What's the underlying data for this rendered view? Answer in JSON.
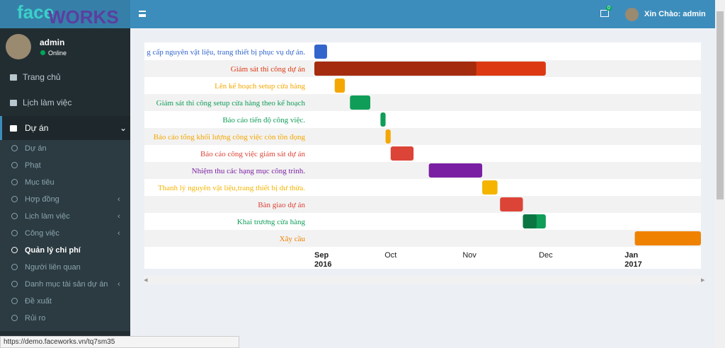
{
  "logo": {
    "part1": "face",
    "part2": "WORKS"
  },
  "user": {
    "name": "admin",
    "status": "Online"
  },
  "header": {
    "greeting": "Xin Chào: admin",
    "mail_count": "0"
  },
  "menu": [
    {
      "label": "Trang chủ",
      "icon": "home"
    },
    {
      "label": "Lịch làm việc",
      "icon": "calendar"
    },
    {
      "label": "Dự án",
      "icon": "briefcase",
      "active": true
    }
  ],
  "submenu": [
    {
      "label": "Dự án",
      "expandable": false
    },
    {
      "label": "Phạt",
      "expandable": false
    },
    {
      "label": "Mục tiêu",
      "expandable": false
    },
    {
      "label": "Hợp đồng",
      "expandable": true
    },
    {
      "label": "Lịch làm việc",
      "expandable": true
    },
    {
      "label": "Công việc",
      "expandable": true
    },
    {
      "label": "Quản lý chi phí",
      "expandable": false,
      "current": true
    },
    {
      "label": "Người liên quan",
      "expandable": false
    },
    {
      "label": "Danh mục tài sản dự án",
      "expandable": true
    },
    {
      "label": "Đề xuất",
      "expandable": false
    },
    {
      "label": "Rủi ro",
      "expandable": false
    }
  ],
  "status_url": "https://demo.faceworks.vn/tq7sm35",
  "chart_data": {
    "type": "gantt",
    "xlim": [
      "2016-09-01",
      "2017-01-31"
    ],
    "xticks": [
      {
        "value": "2016-09-01",
        "label": "Sep",
        "year": "2016"
      },
      {
        "value": "2016-10-01",
        "label": "Oct"
      },
      {
        "value": "2016-11-01",
        "label": "Nov"
      },
      {
        "value": "2016-12-01",
        "label": "Dec"
      },
      {
        "value": "2017-01-01",
        "label": "Jan",
        "year": "2017"
      }
    ],
    "series": [
      {
        "name": "g cấp nguyên vật liệu, trang thiết bị phục vụ dự án.",
        "start": "2016-09-01",
        "end": "2016-09-06",
        "color": "#3366cc"
      },
      {
        "name": "Giám sát thi công dự án",
        "start": "2016-09-01",
        "end": "2016-12-01",
        "color": "#dc3912",
        "progress": 70
      },
      {
        "name": "Lên kế hoạch setup cửa hàng",
        "start": "2016-09-09",
        "end": "2016-09-13",
        "color": "#f4a700"
      },
      {
        "name": "Giám sát thi công setup cửa hàng theo kế hoạch",
        "start": "2016-09-15",
        "end": "2016-09-23",
        "color": "#0f9d58"
      },
      {
        "name": "Báo cáo tiến độ công việc.",
        "start": "2016-09-27",
        "end": "2016-09-29",
        "color": "#0f9d58"
      },
      {
        "name": "Báo cáo tổng khối lượng công việc còn tồn đọng",
        "start": "2016-09-29",
        "end": "2016-10-01",
        "color": "#f4a700"
      },
      {
        "name": "Báo cáo công việc giám sát dự án",
        "start": "2016-10-01",
        "end": "2016-10-10",
        "color": "#db4437"
      },
      {
        "name": "Nhiệm thu các hạng mục công trình.",
        "start": "2016-10-16",
        "end": "2016-11-06",
        "color": "#7b1fa2"
      },
      {
        "name": "Thanh lý nguyên vật liệu,trang thiết bị dư thừa.",
        "start": "2016-11-06",
        "end": "2016-11-12",
        "color": "#f4b400"
      },
      {
        "name": "Bàn giao dự án",
        "start": "2016-11-13",
        "end": "2016-11-22",
        "color": "#db4437"
      },
      {
        "name": "Khai trương cửa hàng",
        "start": "2016-11-22",
        "end": "2016-12-01",
        "color": "#0f9d58",
        "progress": 60
      },
      {
        "name": "Xây cầu",
        "start": "2017-01-05",
        "end": "2017-01-31",
        "color": "#ef8200"
      }
    ]
  }
}
